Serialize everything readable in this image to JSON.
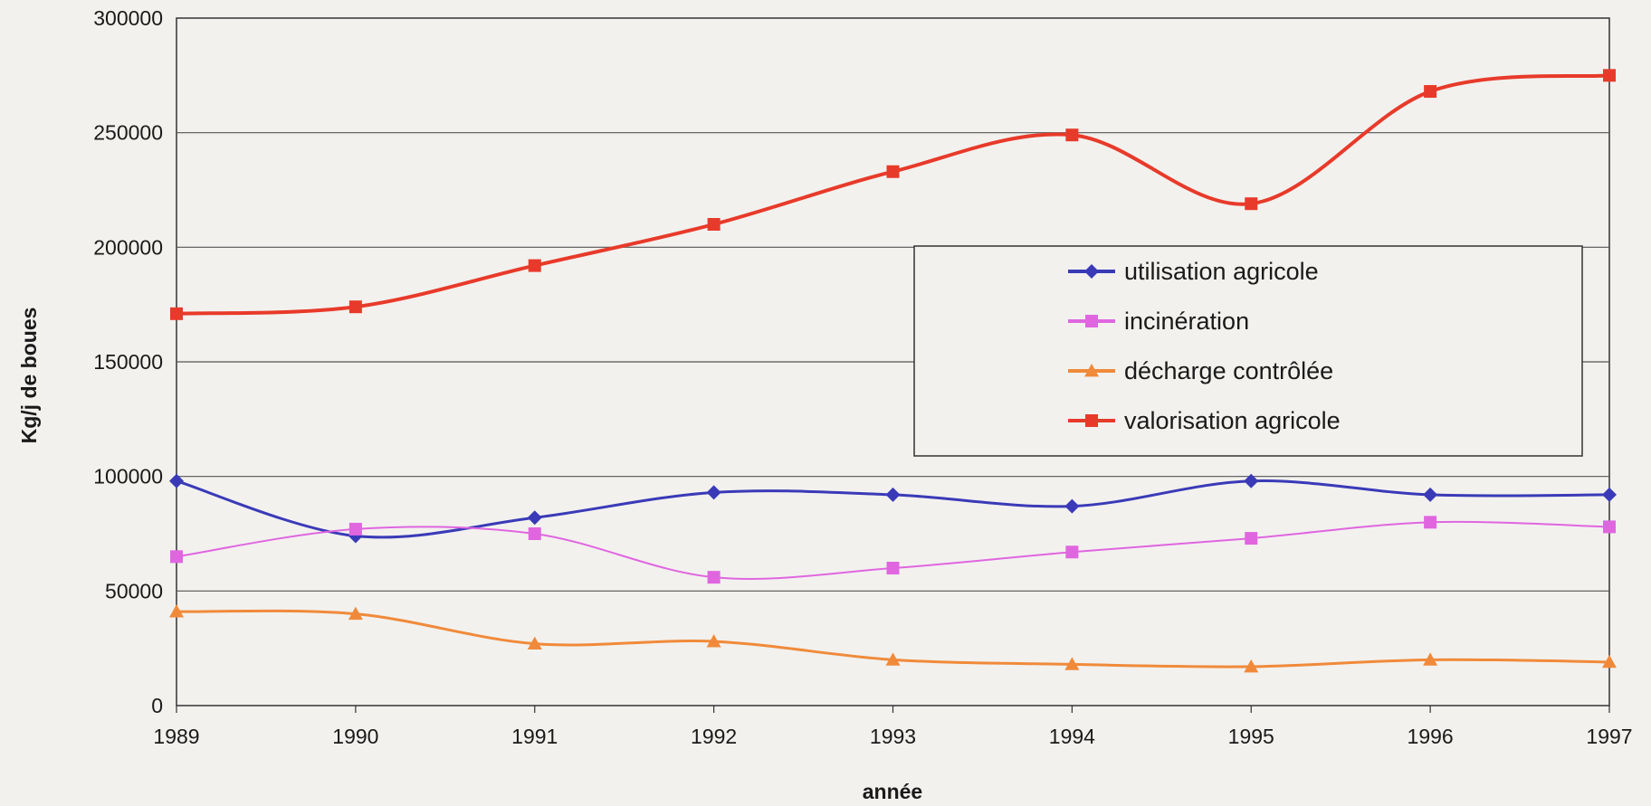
{
  "chart_data": {
    "type": "line",
    "title": "",
    "xlabel": "année",
    "ylabel": "Kg/j  de boues",
    "x": [
      1989,
      1990,
      1991,
      1992,
      1993,
      1994,
      1995,
      1996,
      1997
    ],
    "ylim": [
      0,
      300000
    ],
    "yticks": [
      0,
      50000,
      100000,
      150000,
      200000,
      250000,
      300000
    ],
    "grid": "horizontal",
    "legend_position": "right",
    "series": [
      {
        "name": "utilisation agricole",
        "color": "#3a3ab8",
        "marker": "diamond",
        "values": [
          98000,
          74000,
          82000,
          93000,
          92000,
          87000,
          98000,
          92000,
          92000
        ]
      },
      {
        "name": "incinération",
        "color": "#e066e0",
        "marker": "square",
        "values": [
          65000,
          77000,
          75000,
          56000,
          60000,
          67000,
          73000,
          80000,
          78000
        ]
      },
      {
        "name": "décharge contrôlée",
        "color": "#f08a3a",
        "marker": "triangle",
        "values": [
          41000,
          40000,
          27000,
          28000,
          20000,
          18000,
          17000,
          20000,
          19000
        ]
      },
      {
        "name": "valorisation agricole",
        "color": "#e83a2a",
        "marker": "square",
        "values": [
          171000,
          174000,
          192000,
          210000,
          233000,
          249000,
          219000,
          268000,
          275000
        ]
      }
    ]
  }
}
